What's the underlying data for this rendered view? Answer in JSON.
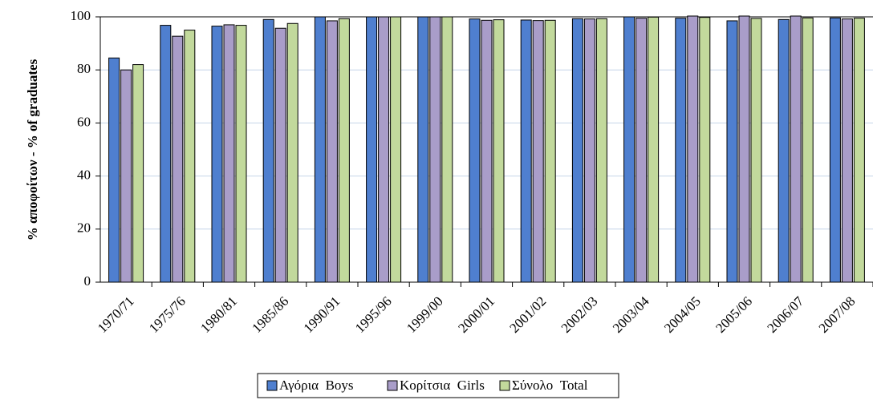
{
  "chart_data": {
    "type": "bar",
    "y_label": "% αποφοίτων - % of graduates",
    "categories": [
      "1970/71",
      "1975/76",
      "1980/81",
      "1985/86",
      "1990/91",
      "1995/96",
      "1999/00",
      "2000/01",
      "2001/02",
      "2002/03",
      "2003/04",
      "2004/05",
      "2005/06",
      "2006/07",
      "2007/08"
    ],
    "series": [
      {
        "name": "Αγόρια  Boys",
        "color": "#4f7fcf",
        "values": [
          84.5,
          96.8,
          96.5,
          99,
          100,
          100,
          100,
          99.2,
          98.8,
          99.3,
          100,
          99.5,
          98.5,
          99,
          99.6
        ]
      },
      {
        "name": "Κορίτσια  Girls",
        "color": "#a99dc9",
        "values": [
          80,
          92.7,
          97,
          95.7,
          98.5,
          100,
          100,
          98.7,
          98.6,
          99.2,
          99.5,
          100.3,
          100.3,
          100.3,
          99.2
        ]
      },
      {
        "name": "Σύνολο  Total",
        "color": "#c2d99c",
        "values": [
          82,
          95,
          96.8,
          97.5,
          99.3,
          100,
          100,
          98.9,
          98.7,
          99.3,
          99.9,
          99.8,
          99.4,
          99.6,
          99.5
        ]
      }
    ],
    "ylim": [
      0,
      100
    ],
    "yticks": [
      0,
      20,
      40,
      60,
      80,
      100
    ],
    "grid": true,
    "legend": "bottom"
  }
}
